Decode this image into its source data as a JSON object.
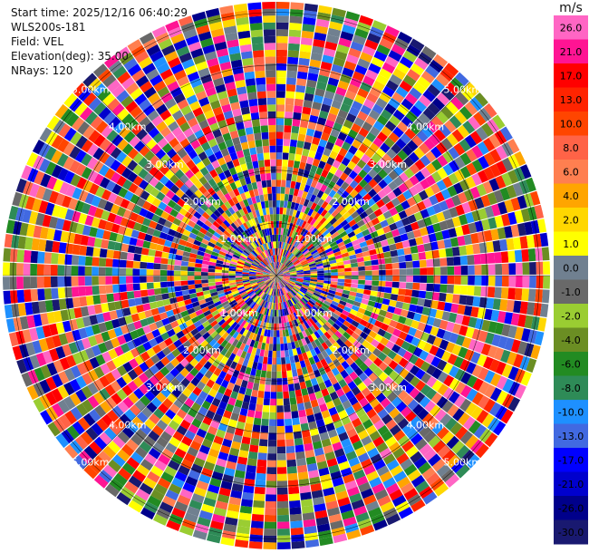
{
  "info": {
    "start_time": "Start time: 2025/12/16 06:40:29",
    "site": "WLS200s-181",
    "field": "Field: VEL",
    "elevation": "Elevation(deg): 35.00",
    "nrays": "NRays: 120"
  },
  "colorbar": {
    "unit": "m/s",
    "ticks": [
      "26.0",
      "21.0",
      "17.0",
      "13.0",
      "10.0",
      "8.0",
      "6.0",
      "4.0",
      "2.0",
      "1.0",
      "0.0",
      "-1.0",
      "-2.0",
      "-4.0",
      "-6.0",
      "-8.0",
      "-10.0",
      "-13.0",
      "-17.0",
      "-21.0",
      "-26.0",
      "-30.0"
    ],
    "colors": [
      "#ff66c4",
      "#ff1493",
      "#ff0000",
      "#ff2400",
      "#ff4500",
      "#ff6347",
      "#ff7f50",
      "#ffa500",
      "#ffd700",
      "#ffff00",
      "#708090",
      "#696969",
      "#9acd32",
      "#6b8e23",
      "#228b22",
      "#2e8b57",
      "#1e90ff",
      "#4169e1",
      "#0000ff",
      "#0000cd",
      "#00008b",
      "#191970"
    ]
  },
  "chart_data": {
    "type": "heatmap",
    "projection": "polar (PPI)",
    "field": "VEL",
    "unit": "m/s",
    "n_rays": 120,
    "range_rings_km": [
      1,
      2,
      3,
      4,
      5
    ],
    "ring_labels": [
      "1.00km",
      "2.00km",
      "3.00km",
      "4.00km",
      "5.00km"
    ],
    "spoke_angles_deg": [
      0,
      45,
      90,
      135,
      180,
      225,
      270,
      315
    ]
  }
}
